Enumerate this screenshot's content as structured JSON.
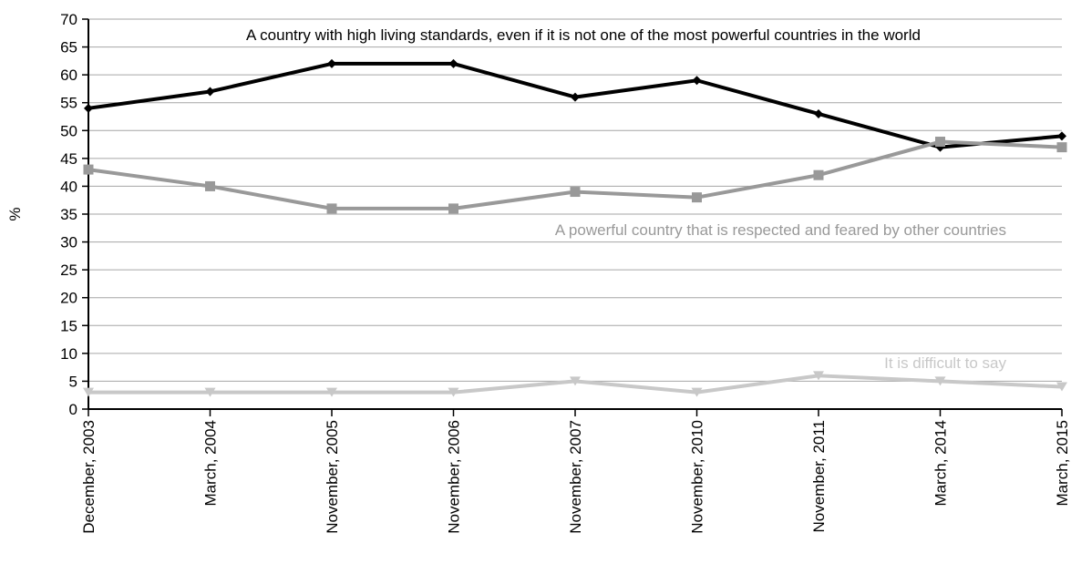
{
  "chart_data": {
    "type": "line",
    "ylabel": "%",
    "ylim": [
      0,
      70
    ],
    "ytick_step": 5,
    "grid": true,
    "categories": [
      "December, 2003",
      "March, 2004",
      "November, 2005",
      "November, 2006",
      "November, 2007",
      "November, 2010",
      "November, 2011",
      "March, 2014",
      "March, 2015"
    ],
    "series": [
      {
        "name": "A country with high living standards, even if it is not one of the most powerful countries in the world",
        "values": [
          54,
          57,
          62,
          62,
          56,
          59,
          53,
          47,
          49
        ],
        "color": "#000000",
        "marker": "diamond"
      },
      {
        "name": "A powerful country that is respected and feared by other countries",
        "values": [
          43,
          40,
          36,
          36,
          39,
          38,
          42,
          48,
          47
        ],
        "color": "#999999",
        "marker": "square"
      },
      {
        "name": "It is difficult to say",
        "values": [
          3,
          3,
          3,
          3,
          5,
          3,
          6,
          5,
          4
        ],
        "color": "#c8c8c8",
        "marker": "triangle-down"
      }
    ]
  }
}
